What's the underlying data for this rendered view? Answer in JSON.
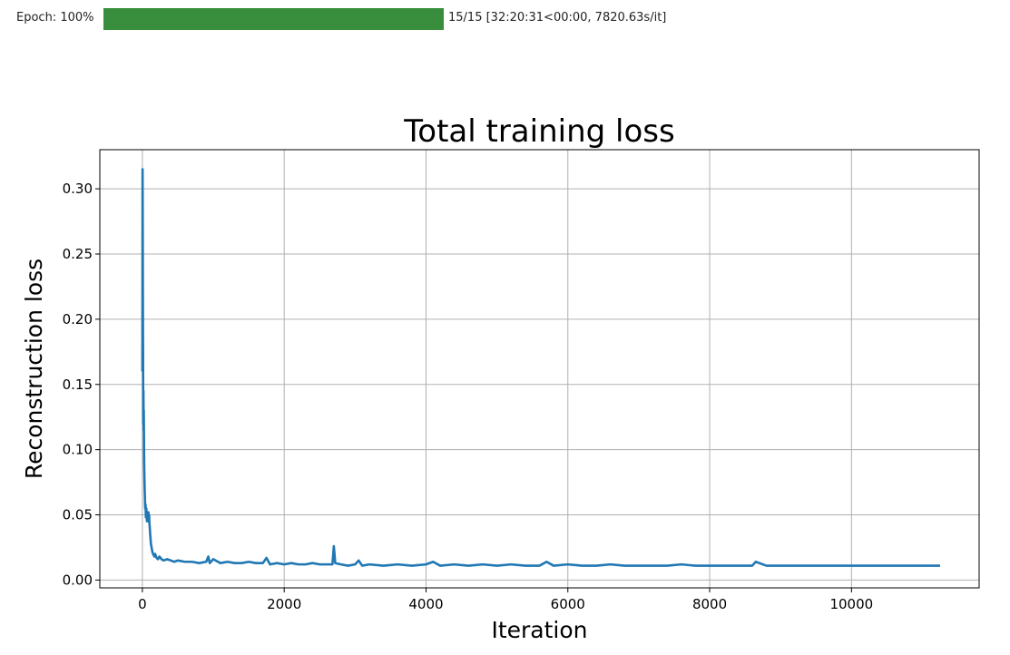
{
  "progress": {
    "label": "Epoch: 100%",
    "fraction": 1.0,
    "info": "15/15 [32:20:31<00:00, 7820.63s/it]",
    "color": "#388e3c"
  },
  "chart_data": {
    "type": "line",
    "title": "Total training loss",
    "xlabel": "Iteration",
    "ylabel": "Reconstruction loss",
    "xlim": [
      -600,
      11800
    ],
    "ylim": [
      -0.006,
      0.33
    ],
    "xticks": [
      0,
      2000,
      4000,
      6000,
      8000,
      10000
    ],
    "xtick_labels": [
      "0",
      "2000",
      "4000",
      "6000",
      "8000",
      "10000"
    ],
    "yticks": [
      0.0,
      0.05,
      0.1,
      0.15,
      0.2,
      0.25,
      0.3
    ],
    "ytick_labels": [
      "0.00",
      "0.05",
      "0.10",
      "0.15",
      "0.20",
      "0.25",
      "0.30"
    ],
    "grid": true,
    "series": [
      {
        "color": "#1f77b4",
        "x": [
          0,
          3,
          6,
          8,
          10,
          12,
          15,
          18,
          20,
          25,
          30,
          35,
          40,
          45,
          50,
          55,
          60,
          65,
          70,
          75,
          80,
          85,
          90,
          95,
          100,
          105,
          110,
          115,
          120,
          130,
          140,
          150,
          160,
          170,
          180,
          200,
          220,
          240,
          270,
          300,
          350,
          400,
          450,
          500,
          600,
          700,
          800,
          900,
          930,
          950,
          1000,
          1100,
          1200,
          1300,
          1400,
          1500,
          1600,
          1700,
          1750,
          1800,
          1900,
          2000,
          2100,
          2200,
          2300,
          2400,
          2500,
          2600,
          2680,
          2700,
          2720,
          2800,
          2900,
          3000,
          3050,
          3100,
          3200,
          3400,
          3600,
          3800,
          4000,
          4100,
          4200,
          4400,
          4600,
          4800,
          5000,
          5200,
          5400,
          5600,
          5700,
          5800,
          6000,
          6200,
          6400,
          6600,
          6800,
          7000,
          7200,
          7400,
          7600,
          7800,
          8000,
          8200,
          8400,
          8600,
          8650,
          8800,
          9000,
          9200,
          9400,
          9600,
          9800,
          10000,
          10200,
          10400,
          10600,
          10800,
          11000,
          11100,
          11250
        ],
        "y": [
          0.16,
          0.315,
          0.25,
          0.2,
          0.17,
          0.12,
          0.145,
          0.115,
          0.13,
          0.09,
          0.075,
          0.065,
          0.055,
          0.058,
          0.048,
          0.055,
          0.05,
          0.045,
          0.052,
          0.047,
          0.05,
          0.052,
          0.045,
          0.05,
          0.043,
          0.04,
          0.035,
          0.032,
          0.028,
          0.025,
          0.022,
          0.02,
          0.019,
          0.018,
          0.02,
          0.017,
          0.016,
          0.018,
          0.016,
          0.015,
          0.016,
          0.015,
          0.014,
          0.015,
          0.014,
          0.014,
          0.013,
          0.014,
          0.018,
          0.013,
          0.016,
          0.013,
          0.014,
          0.013,
          0.013,
          0.014,
          0.013,
          0.013,
          0.017,
          0.012,
          0.013,
          0.012,
          0.013,
          0.012,
          0.012,
          0.013,
          0.012,
          0.012,
          0.012,
          0.026,
          0.013,
          0.012,
          0.011,
          0.012,
          0.015,
          0.011,
          0.012,
          0.011,
          0.012,
          0.011,
          0.012,
          0.014,
          0.011,
          0.012,
          0.011,
          0.012,
          0.011,
          0.012,
          0.011,
          0.011,
          0.014,
          0.011,
          0.012,
          0.011,
          0.011,
          0.012,
          0.011,
          0.011,
          0.011,
          0.011,
          0.012,
          0.011,
          0.011,
          0.011,
          0.011,
          0.011,
          0.014,
          0.011,
          0.011,
          0.011,
          0.011,
          0.011,
          0.011,
          0.011,
          0.011,
          0.011,
          0.011,
          0.011,
          0.011,
          0.011,
          0.011
        ]
      }
    ]
  }
}
